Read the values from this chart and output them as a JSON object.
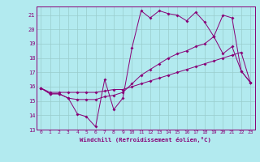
{
  "xlabel": "Windchill (Refroidissement éolien,°C)",
  "background_color": "#b2eaef",
  "line_color": "#880077",
  "grid_color": "#99cccc",
  "xlim": [
    -0.5,
    23.5
  ],
  "ylim": [
    13,
    21.6
  ],
  "yticks": [
    13,
    14,
    15,
    16,
    17,
    18,
    19,
    20,
    21
  ],
  "xticks": [
    0,
    1,
    2,
    3,
    4,
    5,
    6,
    7,
    8,
    9,
    10,
    11,
    12,
    13,
    14,
    15,
    16,
    17,
    18,
    19,
    20,
    21,
    22,
    23
  ],
  "line1_x": [
    0,
    1,
    2,
    3,
    4,
    5,
    6,
    7,
    8,
    9,
    10,
    11,
    12,
    13,
    14,
    15,
    16,
    17,
    18,
    19,
    20,
    21,
    22,
    23
  ],
  "line1_y": [
    15.9,
    15.5,
    15.5,
    15.2,
    14.1,
    13.9,
    13.2,
    16.5,
    14.4,
    15.2,
    18.7,
    21.3,
    20.8,
    21.3,
    21.1,
    21.0,
    20.6,
    21.2,
    20.5,
    19.5,
    21.0,
    20.8,
    17.1,
    16.3
  ],
  "line2_x": [
    0,
    1,
    2,
    3,
    4,
    5,
    6,
    7,
    8,
    9,
    10,
    11,
    12,
    13,
    14,
    15,
    16,
    17,
    18,
    19,
    20,
    21,
    22,
    23
  ],
  "line2_y": [
    15.9,
    15.5,
    15.5,
    15.2,
    15.1,
    15.1,
    15.1,
    15.3,
    15.4,
    15.6,
    16.2,
    16.8,
    17.2,
    17.6,
    18.0,
    18.3,
    18.5,
    18.8,
    19.0,
    19.5,
    18.3,
    18.8,
    17.1,
    16.3
  ],
  "line3_x": [
    0,
    1,
    2,
    3,
    4,
    5,
    6,
    7,
    8,
    9,
    10,
    11,
    12,
    13,
    14,
    15,
    16,
    17,
    18,
    19,
    20,
    21,
    22,
    23
  ],
  "line3_y": [
    15.9,
    15.6,
    15.6,
    15.6,
    15.6,
    15.6,
    15.6,
    15.7,
    15.8,
    15.8,
    16.0,
    16.2,
    16.4,
    16.6,
    16.8,
    17.0,
    17.2,
    17.4,
    17.6,
    17.8,
    18.0,
    18.2,
    18.4,
    16.3
  ]
}
